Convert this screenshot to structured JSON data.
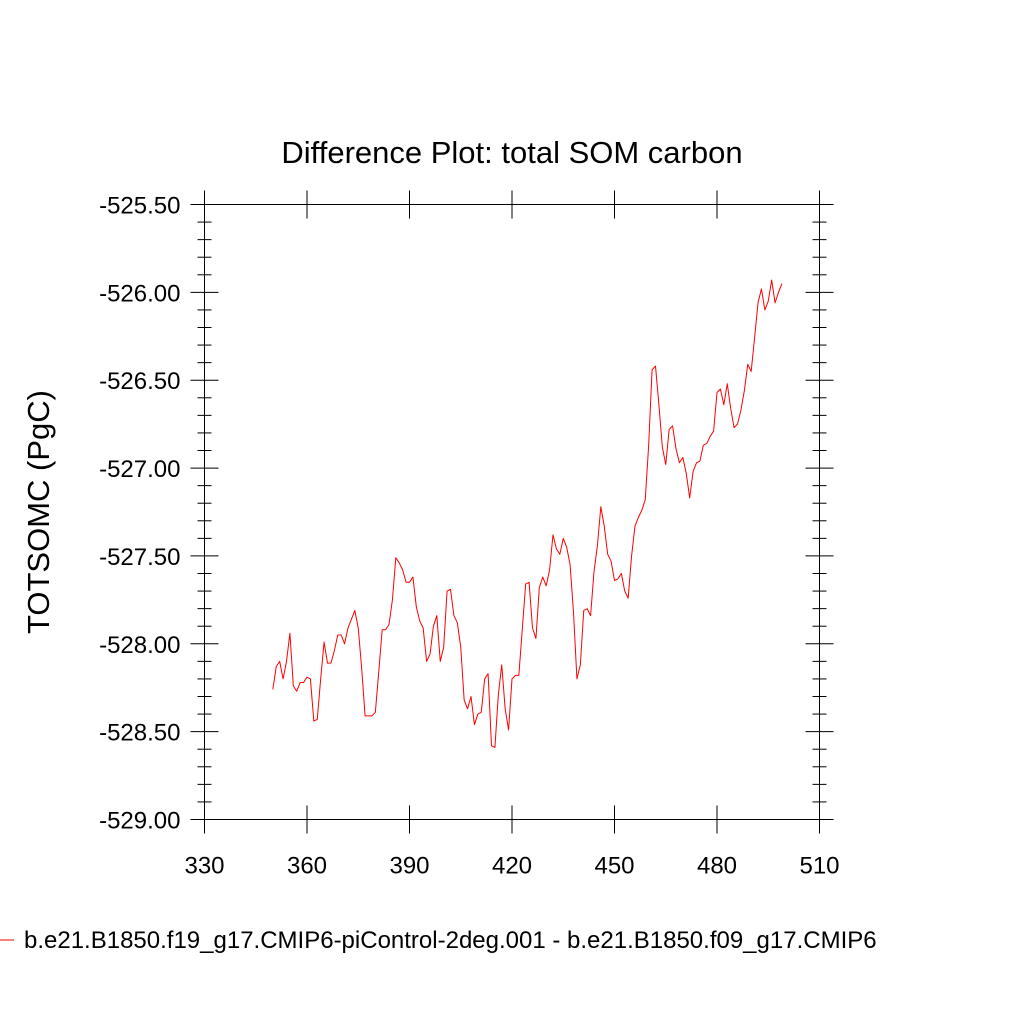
{
  "chart_data": {
    "type": "line",
    "title": "Difference Plot: total SOM carbon",
    "xlabel": "",
    "ylabel": "TOTSOMC  (PgC)",
    "xlim": [
      330,
      510
    ],
    "ylim": [
      -529.0,
      -525.5
    ],
    "xticks": [
      330,
      360,
      390,
      420,
      450,
      480,
      510
    ],
    "xtick_labels": [
      "330",
      "360",
      "390",
      "420",
      "450",
      "480",
      "510"
    ],
    "yticks": [
      -529.0,
      -528.5,
      -528.0,
      -527.5,
      -527.0,
      -526.5,
      -526.0,
      -525.5
    ],
    "ytick_labels": [
      "-529.00",
      "-528.50",
      "-528.00",
      "-527.50",
      "-527.00",
      "-526.50",
      "-526.00",
      "-525.50"
    ],
    "grid": false,
    "legend_position": "bottom",
    "series": [
      {
        "name": "b.e21.B1850.f19_g17.CMIP6-piControl-2deg.001 - b.e21.B1850.f09_g17.CMIP6",
        "color": "#ff0000",
        "x": [
          350,
          351,
          352,
          353,
          354,
          355,
          356,
          357,
          358,
          359,
          360,
          361,
          362,
          363,
          364,
          365,
          366,
          367,
          368,
          369,
          370,
          371,
          372,
          373,
          374,
          375,
          376,
          377,
          378,
          379,
          380,
          381,
          382,
          383,
          384,
          385,
          386,
          387,
          388,
          389,
          390,
          391,
          392,
          393,
          394,
          395,
          396,
          397,
          398,
          399,
          400,
          401,
          402,
          403,
          404,
          405,
          406,
          407,
          408,
          409,
          410,
          411,
          412,
          413,
          414,
          415,
          416,
          417,
          418,
          419,
          420,
          421,
          422,
          423,
          424,
          425,
          426,
          427,
          428,
          429,
          430,
          431,
          432,
          433,
          434,
          435,
          436,
          437,
          438,
          439,
          440,
          441,
          442,
          443,
          444,
          445,
          446,
          447,
          448,
          449,
          450,
          451,
          452,
          453,
          454,
          455,
          456,
          457,
          458,
          459,
          460,
          461,
          462,
          463,
          464,
          465,
          466,
          467,
          468,
          469,
          470,
          471,
          472,
          473,
          474,
          475,
          476,
          477,
          478,
          479,
          480,
          481,
          482,
          483,
          484,
          485,
          486,
          487,
          488,
          489,
          490,
          491,
          492,
          493,
          494,
          495,
          496,
          497,
          498,
          499
        ],
        "values": [
          -528.26,
          -528.13,
          -528.1,
          -528.2,
          -528.1,
          -527.94,
          -528.24,
          -528.27,
          -528.22,
          -528.22,
          -528.19,
          -528.2,
          -528.44,
          -528.43,
          -528.2,
          -527.99,
          -528.11,
          -528.11,
          -528.04,
          -527.95,
          -527.95,
          -528.0,
          -527.91,
          -527.86,
          -527.81,
          -527.91,
          -528.14,
          -528.41,
          -528.41,
          -528.41,
          -528.39,
          -528.16,
          -527.92,
          -527.92,
          -527.89,
          -527.75,
          -527.51,
          -527.54,
          -527.58,
          -527.65,
          -527.65,
          -527.62,
          -527.79,
          -527.87,
          -527.91,
          -528.1,
          -528.06,
          -527.9,
          -527.84,
          -528.1,
          -528.02,
          -527.7,
          -527.69,
          -527.84,
          -527.88,
          -528.02,
          -528.32,
          -528.37,
          -528.3,
          -528.46,
          -528.4,
          -528.39,
          -528.2,
          -528.17,
          -528.58,
          -528.59,
          -528.29,
          -528.12,
          -528.37,
          -528.49,
          -528.2,
          -528.18,
          -528.18,
          -527.92,
          -527.66,
          -527.65,
          -527.91,
          -527.97,
          -527.68,
          -527.62,
          -527.67,
          -527.58,
          -527.38,
          -527.46,
          -527.49,
          -527.4,
          -527.45,
          -527.55,
          -527.82,
          -528.2,
          -528.12,
          -527.81,
          -527.8,
          -527.84,
          -527.59,
          -527.44,
          -527.22,
          -527.33,
          -527.49,
          -527.53,
          -527.64,
          -527.63,
          -527.6,
          -527.7,
          -527.74,
          -527.5,
          -527.33,
          -527.28,
          -527.24,
          -527.18,
          -526.87,
          -526.44,
          -526.42,
          -526.64,
          -526.88,
          -526.98,
          -526.78,
          -526.76,
          -526.89,
          -526.97,
          -526.94,
          -527.03,
          -527.17,
          -527.02,
          -526.97,
          -526.96,
          -526.87,
          -526.86,
          -526.82,
          -526.79,
          -526.57,
          -526.55,
          -526.64,
          -526.52,
          -526.66,
          -526.77,
          -526.75,
          -526.67,
          -526.56,
          -526.41,
          -526.45,
          -526.26,
          -526.06,
          -525.98,
          -526.1,
          -526.05,
          -525.93,
          -526.06,
          -526.0,
          -525.95
        ]
      }
    ]
  }
}
